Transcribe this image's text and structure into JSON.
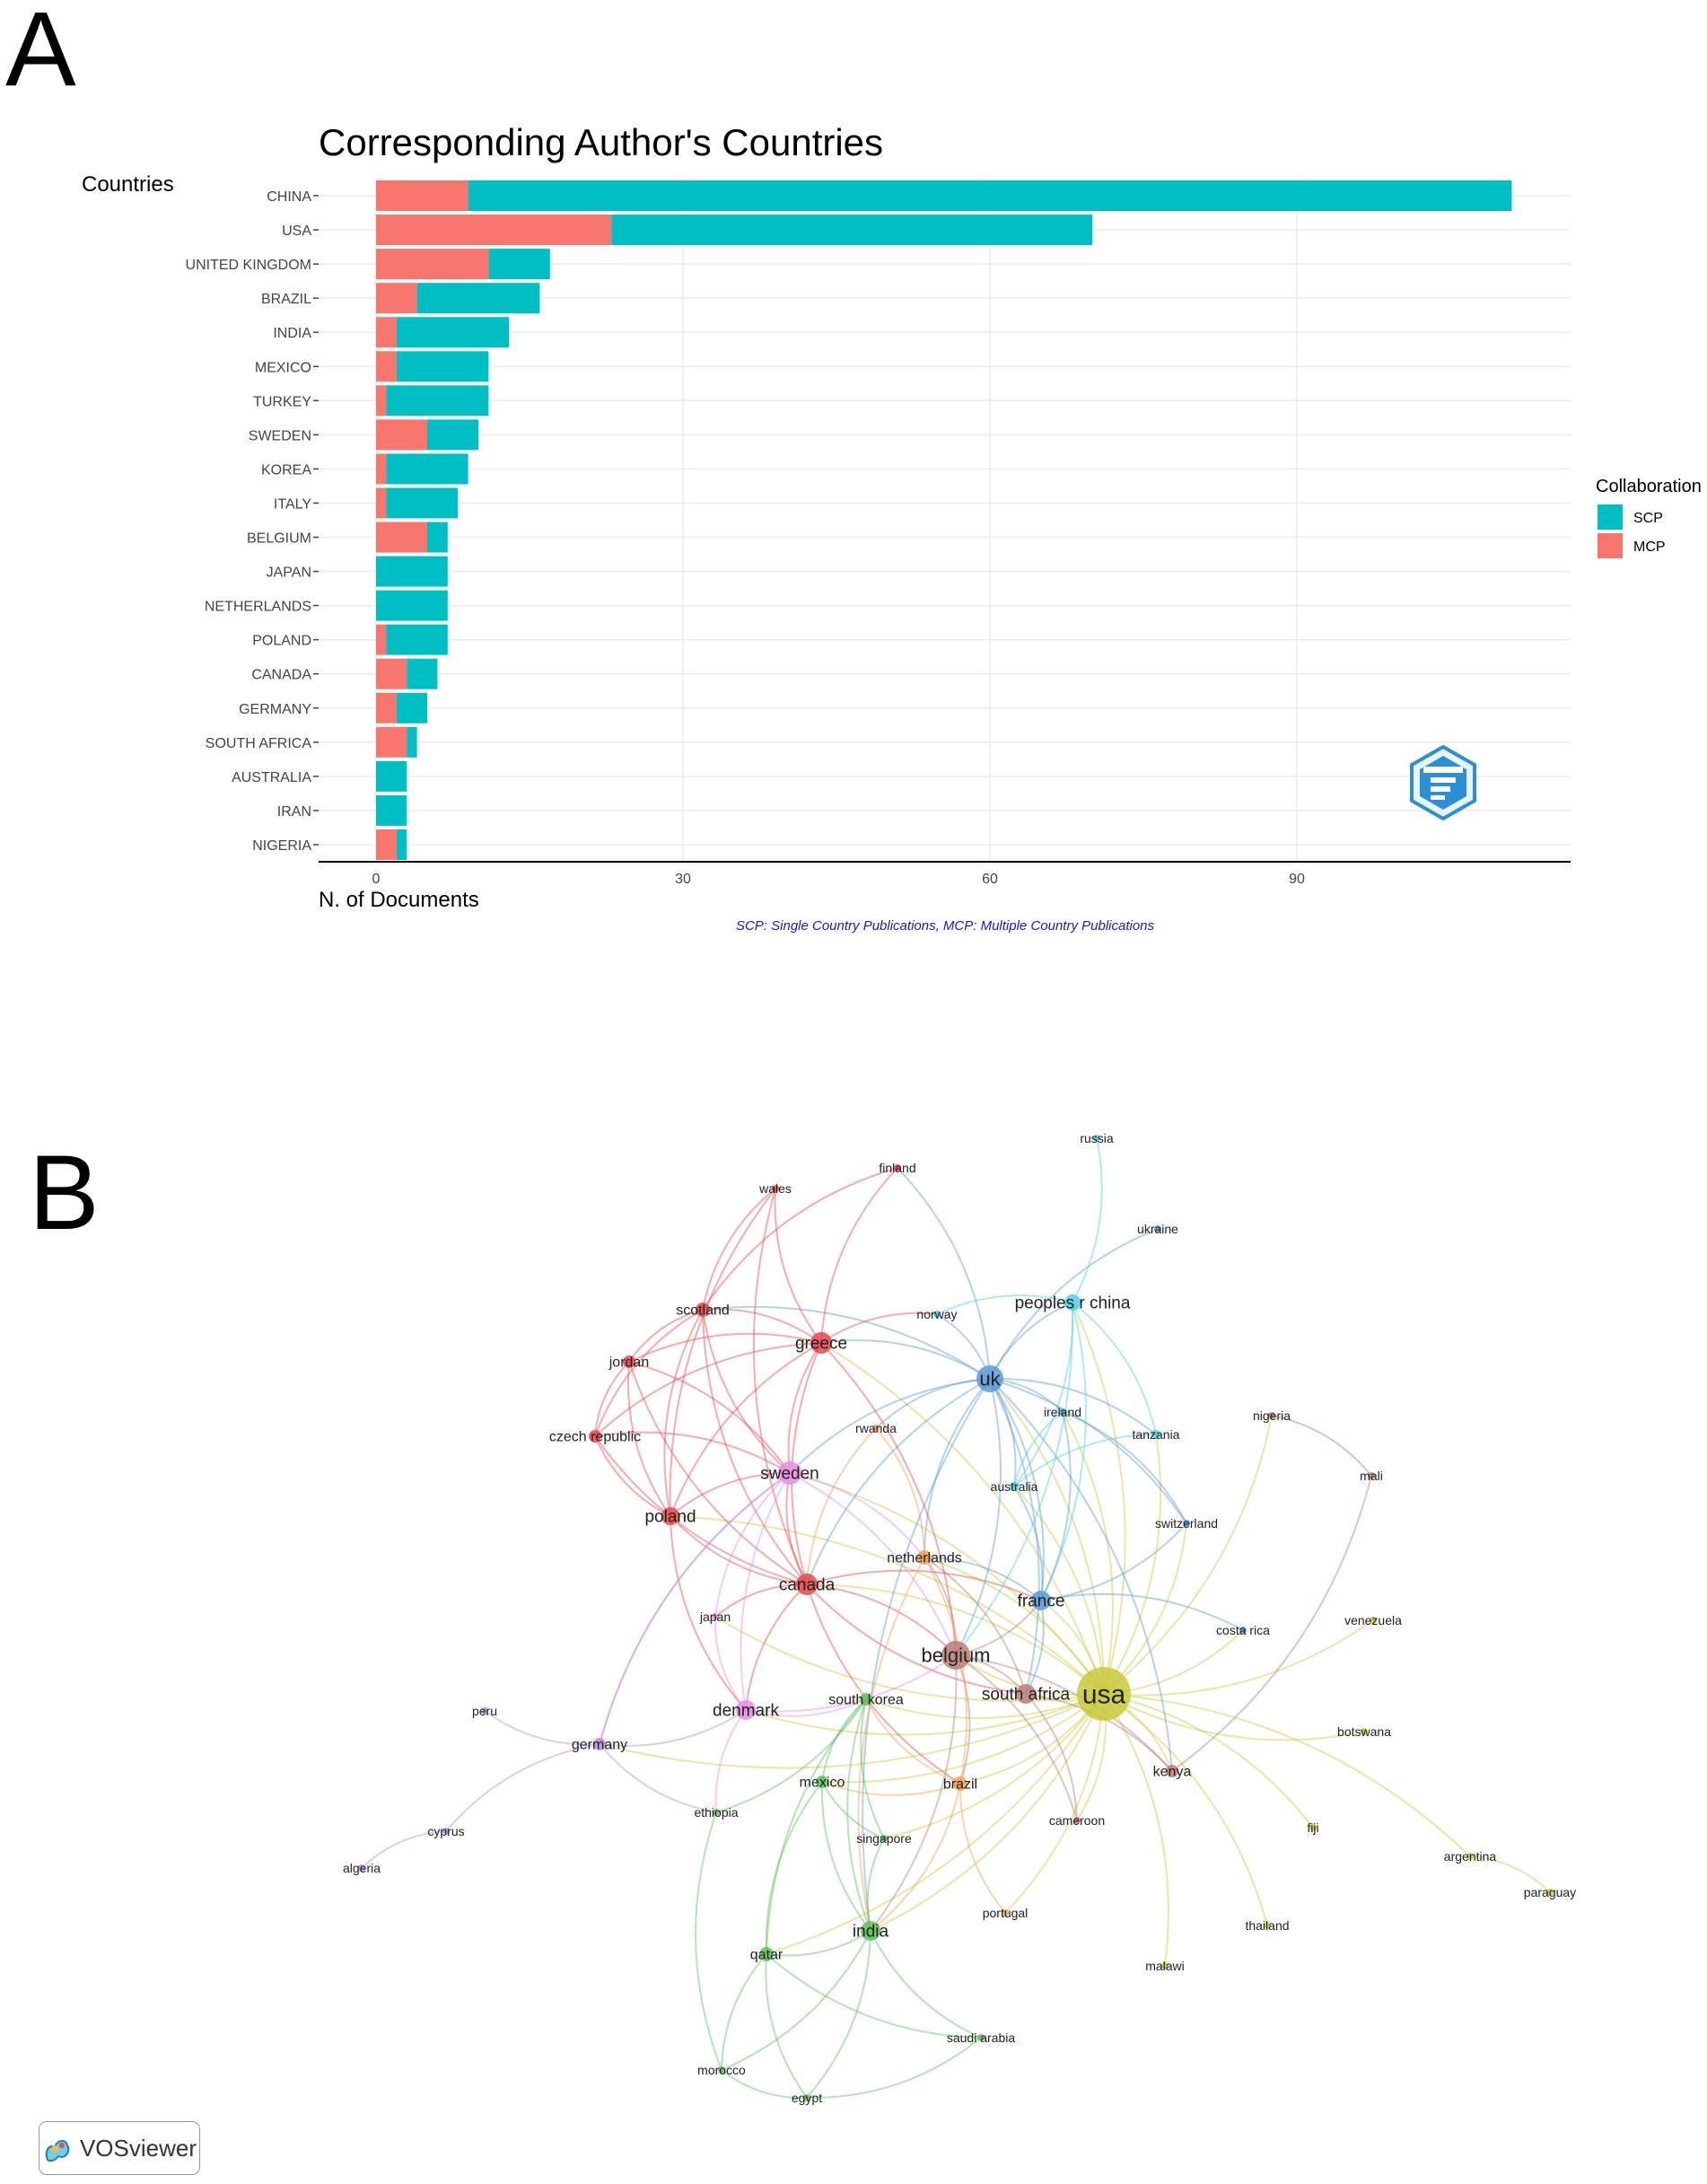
{
  "panel_a": {
    "letter": "A"
  },
  "panel_b": {
    "letter": "B",
    "logo_text": "VOSviewer"
  },
  "chart_data": [
    {
      "type": "bar",
      "orientation": "horizontal",
      "stacked": true,
      "title": "Corresponding Author's Countries",
      "xlabel": "N. of Documents",
      "ylabel": "Countries",
      "caption": "SCP: Single Country Publications, MCP: Multiple Country Publications",
      "categories": [
        "CHINA",
        "USA",
        "UNITED KINGDOM",
        "BRAZIL",
        "INDIA",
        "MEXICO",
        "TURKEY",
        "SWEDEN",
        "KOREA",
        "ITALY",
        "BELGIUM",
        "JAPAN",
        "NETHERLANDS",
        "POLAND",
        "CANADA",
        "GERMANY",
        "SOUTH AFRICA",
        "AUSTRALIA",
        "IRAN",
        "NIGERIA"
      ],
      "series": [
        {
          "name": "MCP",
          "color": "#F8766D",
          "values": [
            9,
            23,
            11,
            4,
            2,
            2,
            1,
            5,
            1,
            1,
            5,
            0,
            0,
            1,
            3,
            2,
            3,
            0,
            0,
            2
          ]
        },
        {
          "name": "SCP",
          "color": "#00BFC4",
          "values": [
            102,
            47,
            6,
            12,
            11,
            9,
            10,
            5,
            8,
            7,
            2,
            7,
            7,
            6,
            3,
            3,
            1,
            3,
            3,
            1
          ]
        }
      ],
      "xticks": [
        0,
        30,
        60,
        90
      ],
      "xlim": [
        -5.5,
        111
      ],
      "legend": {
        "title": "Collaboration",
        "position": "right",
        "entries": [
          "SCP",
          "MCP"
        ]
      },
      "grid": true,
      "watermark": "bibliometrix"
    },
    {
      "type": "network",
      "description_source": "VOSviewer",
      "cluster_colors": {
        "red": "#e8474f",
        "green": "#5ec25a",
        "blue": "#5b9bd5",
        "yellow": "#c9c93a",
        "purple": "#b48ee0",
        "cyan": "#4fd0e0",
        "orange": "#f0a050",
        "brown": "#b87f75",
        "pink": "#e48ee0"
      },
      "nodes": [
        {
          "id": "usa",
          "label": "usa",
          "cluster": "yellow",
          "weight": 30
        },
        {
          "id": "uk",
          "label": "uk",
          "cluster": "blue",
          "weight": 15
        },
        {
          "id": "france",
          "label": "france",
          "cluster": "blue",
          "weight": 11
        },
        {
          "id": "ireland",
          "label": "ireland",
          "cluster": "blue",
          "weight": 4
        },
        {
          "id": "switzerland",
          "label": "switzerland",
          "cluster": "blue",
          "weight": 4
        },
        {
          "id": "costa rica",
          "label": "costa rica",
          "cluster": "blue",
          "weight": 4
        },
        {
          "id": "ukraine",
          "label": "ukraine",
          "cluster": "blue",
          "weight": 3
        },
        {
          "id": "peoples r china",
          "label": "peoples r china",
          "cluster": "cyan",
          "weight": 9
        },
        {
          "id": "tanzania",
          "label": "tanzania",
          "cluster": "cyan",
          "weight": 5
        },
        {
          "id": "australia",
          "label": "australia",
          "cluster": "cyan",
          "weight": 5
        },
        {
          "id": "norway",
          "label": "norway",
          "cluster": "cyan",
          "weight": 4
        },
        {
          "id": "russia",
          "label": "russia",
          "cluster": "cyan",
          "weight": 2
        },
        {
          "id": "greece",
          "label": "greece",
          "cluster": "red",
          "weight": 12
        },
        {
          "id": "canada",
          "label": "canada",
          "cluster": "red",
          "weight": 12
        },
        {
          "id": "poland",
          "label": "poland",
          "cluster": "red",
          "weight": 10
        },
        {
          "id": "scotland",
          "label": "scotland",
          "cluster": "red",
          "weight": 8
        },
        {
          "id": "jordan",
          "label": "jordan",
          "cluster": "red",
          "weight": 7
        },
        {
          "id": "czech republic",
          "label": "czech republic",
          "cluster": "red",
          "weight": 7
        },
        {
          "id": "wales",
          "label": "wales",
          "cluster": "red",
          "weight": 4
        },
        {
          "id": "finland",
          "label": "finland",
          "cluster": "red",
          "weight": 4
        },
        {
          "id": "sweden",
          "label": "sweden",
          "cluster": "pink",
          "weight": 13
        },
        {
          "id": "denmark",
          "label": "denmark",
          "cluster": "pink",
          "weight": 11
        },
        {
          "id": "japan",
          "label": "japan",
          "cluster": "pink",
          "weight": 4
        },
        {
          "id": "belgium",
          "label": "belgium",
          "cluster": "brown",
          "weight": 16
        },
        {
          "id": "south africa",
          "label": "south africa",
          "cluster": "brown",
          "weight": 11
        },
        {
          "id": "kenya",
          "label": "kenya",
          "cluster": "brown",
          "weight": 7
        },
        {
          "id": "nigeria",
          "label": "nigeria",
          "cluster": "brown",
          "weight": 4
        },
        {
          "id": "mali",
          "label": "mali",
          "cluster": "brown",
          "weight": 2
        },
        {
          "id": "cameroon",
          "label": "cameroon",
          "cluster": "brown",
          "weight": 3
        },
        {
          "id": "netherlands",
          "label": "netherlands",
          "cluster": "orange",
          "weight": 8
        },
        {
          "id": "brazil",
          "label": "brazil",
          "cluster": "orange",
          "weight": 8
        },
        {
          "id": "rwanda",
          "label": "rwanda",
          "cluster": "orange",
          "weight": 4
        },
        {
          "id": "portugal",
          "label": "portugal",
          "cluster": "orange",
          "weight": 2
        },
        {
          "id": "india",
          "label": "india",
          "cluster": "green",
          "weight": 11
        },
        {
          "id": "qatar",
          "label": "qatar",
          "cluster": "green",
          "weight": 8
        },
        {
          "id": "mexico",
          "label": "mexico",
          "cluster": "green",
          "weight": 7
        },
        {
          "id": "south korea",
          "label": "south korea",
          "cluster": "green",
          "weight": 7
        },
        {
          "id": "singapore",
          "label": "singapore",
          "cluster": "green",
          "weight": 4
        },
        {
          "id": "saudi arabia",
          "label": "saudi arabia",
          "cluster": "green",
          "weight": 4
        },
        {
          "id": "morocco",
          "label": "morocco",
          "cluster": "green",
          "weight": 4
        },
        {
          "id": "egypt",
          "label": "egypt",
          "cluster": "green",
          "weight": 4
        },
        {
          "id": "ethiopia",
          "label": "ethiopia",
          "cluster": "green",
          "weight": 3
        },
        {
          "id": "germany",
          "label": "germany",
          "cluster": "purple",
          "weight": 7
        },
        {
          "id": "cyprus",
          "label": "cyprus",
          "cluster": "purple",
          "weight": 3
        },
        {
          "id": "peru",
          "label": "peru",
          "cluster": "purple",
          "weight": 2
        },
        {
          "id": "algeria",
          "label": "algeria",
          "cluster": "purple",
          "weight": 2
        },
        {
          "id": "venezuela",
          "label": "venezuela",
          "cluster": "yellow",
          "weight": 2
        },
        {
          "id": "botswana",
          "label": "botswana",
          "cluster": "yellow",
          "weight": 2
        },
        {
          "id": "fiji",
          "label": "fiji",
          "cluster": "yellow",
          "weight": 2
        },
        {
          "id": "argentina",
          "label": "argentina",
          "cluster": "yellow",
          "weight": 3
        },
        {
          "id": "paraguay",
          "label": "paraguay",
          "cluster": "yellow",
          "weight": 2
        },
        {
          "id": "thailand",
          "label": "thailand",
          "cluster": "yellow",
          "weight": 3
        },
        {
          "id": "malawi",
          "label": "malawi",
          "cluster": "yellow",
          "weight": 2
        }
      ],
      "links": [
        [
          "usa",
          "uk"
        ],
        [
          "usa",
          "france"
        ],
        [
          "usa",
          "belgium"
        ],
        [
          "usa",
          "south africa"
        ],
        [
          "usa",
          "kenya"
        ],
        [
          "usa",
          "canada"
        ],
        [
          "usa",
          "india"
        ],
        [
          "usa",
          "brazil"
        ],
        [
          "usa",
          "sweden"
        ],
        [
          "usa",
          "denmark"
        ],
        [
          "usa",
          "greece"
        ],
        [
          "usa",
          "costa rica"
        ],
        [
          "usa",
          "venezuela"
        ],
        [
          "usa",
          "botswana"
        ],
        [
          "usa",
          "fiji"
        ],
        [
          "usa",
          "argentina"
        ],
        [
          "usa",
          "thailand"
        ],
        [
          "usa",
          "malawi"
        ],
        [
          "usa",
          "cameroon"
        ],
        [
          "usa",
          "nigeria"
        ],
        [
          "usa",
          "switzerland"
        ],
        [
          "usa",
          "tanzania"
        ],
        [
          "usa",
          "peoples r china"
        ],
        [
          "usa",
          "australia"
        ],
        [
          "usa",
          "netherlands"
        ],
        [
          "usa",
          "mexico"
        ],
        [
          "usa",
          "south korea"
        ],
        [
          "usa",
          "singapore"
        ],
        [
          "usa",
          "qatar"
        ],
        [
          "usa",
          "germany"
        ],
        [
          "usa",
          "japan"
        ],
        [
          "usa",
          "portugal"
        ],
        [
          "usa",
          "ireland"
        ],
        [
          "usa",
          "poland"
        ],
        [
          "argentina",
          "paraguay"
        ],
        [
          "nigeria",
          "mali"
        ],
        [
          "kenya",
          "mali"
        ],
        [
          "uk",
          "greece"
        ],
        [
          "uk",
          "sweden"
        ],
        [
          "uk",
          "canada"
        ],
        [
          "uk",
          "france"
        ],
        [
          "uk",
          "belgium"
        ],
        [
          "uk",
          "peoples r china"
        ],
        [
          "uk",
          "norway"
        ],
        [
          "uk",
          "ireland"
        ],
        [
          "uk",
          "australia"
        ],
        [
          "uk",
          "tanzania"
        ],
        [
          "uk",
          "south africa"
        ],
        [
          "uk",
          "kenya"
        ],
        [
          "uk",
          "rwanda"
        ],
        [
          "uk",
          "netherlands"
        ],
        [
          "uk",
          "ukraine"
        ],
        [
          "uk",
          "scotland"
        ],
        [
          "uk",
          "india"
        ],
        [
          "uk",
          "finland"
        ],
        [
          "uk",
          "switzerland"
        ],
        [
          "peoples r china",
          "russia"
        ],
        [
          "peoples r china",
          "tanzania"
        ],
        [
          "peoples r china",
          "australia"
        ],
        [
          "peoples r china",
          "norway"
        ],
        [
          "peoples r china",
          "france"
        ],
        [
          "peoples r china",
          "belgium"
        ],
        [
          "greece",
          "scotland"
        ],
        [
          "greece",
          "jordan"
        ],
        [
          "greece",
          "czech republic"
        ],
        [
          "greece",
          "poland"
        ],
        [
          "greece",
          "canada"
        ],
        [
          "greece",
          "sweden"
        ],
        [
          "greece",
          "wales"
        ],
        [
          "greece",
          "finland"
        ],
        [
          "greece",
          "belgium"
        ],
        [
          "greece",
          "norway"
        ],
        [
          "scotland",
          "wales"
        ],
        [
          "scotland",
          "jordan"
        ],
        [
          "scotland",
          "poland"
        ],
        [
          "scotland",
          "canada"
        ],
        [
          "scotland",
          "czech republic"
        ],
        [
          "scotland",
          "finland"
        ],
        [
          "scotland",
          "sweden"
        ],
        [
          "jordan",
          "poland"
        ],
        [
          "jordan",
          "canada"
        ],
        [
          "jordan",
          "czech republic"
        ],
        [
          "jordan",
          "sweden"
        ],
        [
          "czech republic",
          "poland"
        ],
        [
          "czech republic",
          "canada"
        ],
        [
          "czech republic",
          "sweden"
        ],
        [
          "poland",
          "canada"
        ],
        [
          "poland",
          "sweden"
        ],
        [
          "poland",
          "wales"
        ],
        [
          "poland",
          "denmark"
        ],
        [
          "canada",
          "sweden"
        ],
        [
          "canada",
          "belgium"
        ],
        [
          "canada",
          "france"
        ],
        [
          "canada",
          "denmark"
        ],
        [
          "canada",
          "brazil"
        ],
        [
          "canada",
          "south africa"
        ],
        [
          "canada",
          "wales"
        ],
        [
          "canada",
          "japan"
        ],
        [
          "sweden",
          "denmark"
        ],
        [
          "sweden",
          "japan"
        ],
        [
          "sweden",
          "belgium"
        ],
        [
          "sweden",
          "netherlands"
        ],
        [
          "sweden",
          "germany"
        ],
        [
          "denmark",
          "belgium"
        ],
        [
          "denmark",
          "south korea"
        ],
        [
          "denmark",
          "japan"
        ],
        [
          "denmark",
          "ethiopia"
        ],
        [
          "germany",
          "cyprus"
        ],
        [
          "germany",
          "peru"
        ],
        [
          "germany",
          "ethiopia"
        ],
        [
          "germany",
          "sweden"
        ],
        [
          "germany",
          "denmark"
        ],
        [
          "cyprus",
          "algeria"
        ],
        [
          "belgium",
          "france"
        ],
        [
          "belgium",
          "netherlands"
        ],
        [
          "belgium",
          "south africa"
        ],
        [
          "belgium",
          "brazil"
        ],
        [
          "belgium",
          "india"
        ],
        [
          "belgium",
          "kenya"
        ],
        [
          "belgium",
          "cameroon"
        ],
        [
          "france",
          "switzerland"
        ],
        [
          "france",
          "costa rica"
        ],
        [
          "france",
          "australia"
        ],
        [
          "france",
          "netherlands"
        ],
        [
          "france",
          "south africa"
        ],
        [
          "france",
          "ireland"
        ],
        [
          "south africa",
          "kenya"
        ],
        [
          "south africa",
          "cameroon"
        ],
        [
          "south africa",
          "netherlands"
        ],
        [
          "netherlands",
          "brazil"
        ],
        [
          "netherlands",
          "rwanda"
        ],
        [
          "netherlands",
          "india"
        ],
        [
          "brazil",
          "portugal"
        ],
        [
          "brazil",
          "mexico"
        ],
        [
          "brazil",
          "india"
        ],
        [
          "brazil",
          "south korea"
        ],
        [
          "india",
          "qatar"
        ],
        [
          "india",
          "saudi arabia"
        ],
        [
          "india",
          "singapore"
        ],
        [
          "india",
          "mexico"
        ],
        [
          "india",
          "south korea"
        ],
        [
          "india",
          "morocco"
        ],
        [
          "india",
          "egypt"
        ],
        [
          "qatar",
          "morocco"
        ],
        [
          "qatar",
          "egypt"
        ],
        [
          "qatar",
          "mexico"
        ],
        [
          "qatar",
          "south korea"
        ],
        [
          "qatar",
          "saudi arabia"
        ],
        [
          "mexico",
          "south korea"
        ],
        [
          "mexico",
          "singapore"
        ],
        [
          "singapore",
          "south korea"
        ],
        [
          "ethiopia",
          "south korea"
        ],
        [
          "ethiopia",
          "morocco"
        ],
        [
          "saudi arabia",
          "egypt"
        ],
        [
          "morocco",
          "egypt"
        ],
        [
          "australia",
          "tanzania"
        ],
        [
          "australia",
          "ireland"
        ],
        [
          "ireland",
          "switzerland"
        ],
        [
          "rwanda",
          "canada"
        ]
      ]
    }
  ]
}
